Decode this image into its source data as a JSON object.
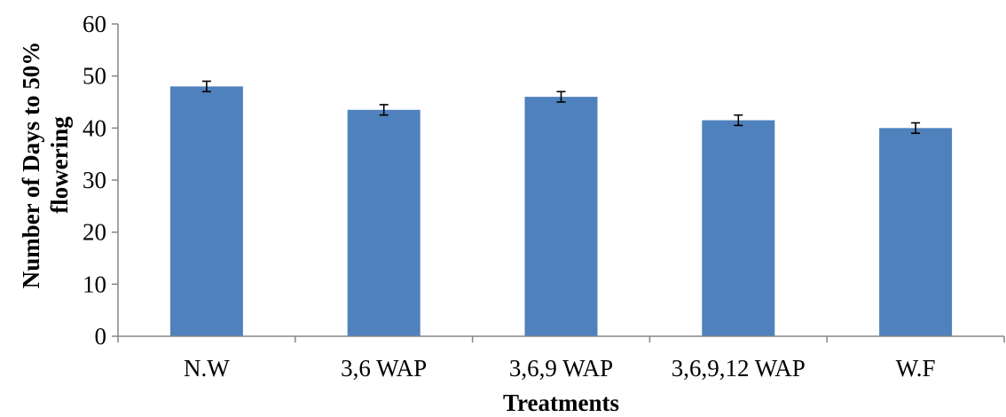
{
  "chart_data": {
    "type": "bar",
    "title": "",
    "xlabel": "Treatments",
    "ylabel": "Number of Days to 50% flowering",
    "ylabel_lines": [
      "Number of Days to 50%",
      "flowering"
    ],
    "categories": [
      "N.W",
      "3,6 WAP",
      "3,6,9 WAP",
      "3,6,9,12 WAP",
      "W.F"
    ],
    "values": [
      48,
      43.5,
      46,
      41.5,
      40
    ],
    "errors": [
      1,
      1,
      1,
      1,
      1
    ],
    "ylim": [
      0,
      60
    ],
    "yticks": [
      0,
      10,
      20,
      30,
      40,
      50,
      60
    ],
    "grid": false,
    "legend": "none",
    "bar_color": "#4f81bd"
  }
}
